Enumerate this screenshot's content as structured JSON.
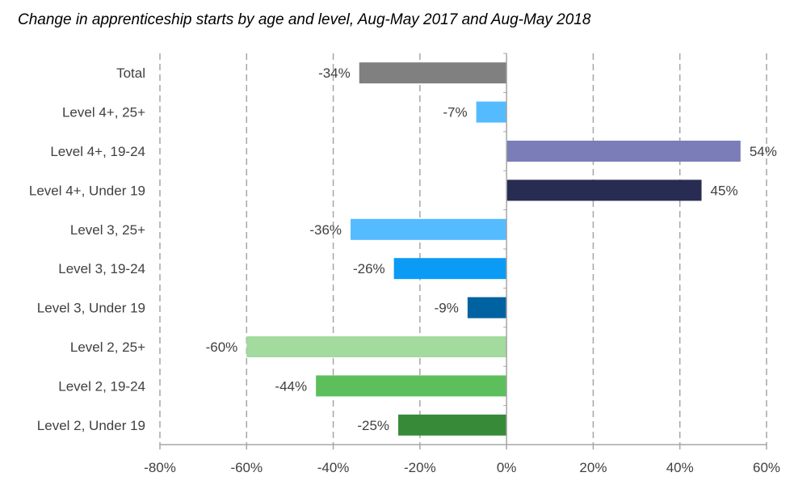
{
  "chart_data": {
    "type": "bar",
    "orientation": "horizontal",
    "title": "Change in apprenticeship starts by age and level, Aug-May 2017 and Aug-May 2018",
    "xlabel": "",
    "ylabel": "",
    "xlim": [
      -80,
      60
    ],
    "x_ticks": [
      "-80%",
      "-60%",
      "-40%",
      "-20%",
      "0%",
      "20%",
      "40%",
      "60%"
    ],
    "x_tick_values": [
      -80,
      -60,
      -40,
      -20,
      0,
      20,
      40,
      60
    ],
    "grid": "vertical dashed",
    "legend": "none",
    "categories": [
      "Total",
      "Level 4+, 25+",
      "Level 4+, 19-24",
      "Level 4+, Under 19",
      "Level 3, 25+",
      "Level 3, 19-24",
      "Level 3, Under 19",
      "Level 2, 25+",
      "Level 2, 19-24",
      "Level 2, Under 19"
    ],
    "values": [
      -34,
      -7,
      54,
      45,
      -36,
      -26,
      -9,
      -60,
      -44,
      -25
    ],
    "value_labels": [
      "-34%",
      "-7%",
      "54%",
      "45%",
      "-36%",
      "-26%",
      "-9%",
      "-60%",
      "-44%",
      "-25%"
    ],
    "colors": [
      "#808080",
      "#55BBFF",
      "#7A7DB8",
      "#282C52",
      "#55BBFF",
      "#0B9BF5",
      "#0062A0",
      "#A3DA9E",
      "#5CBF5C",
      "#368A38"
    ],
    "gridline_color": "#A6A6A6",
    "axis_color": "#A6A6A6"
  }
}
